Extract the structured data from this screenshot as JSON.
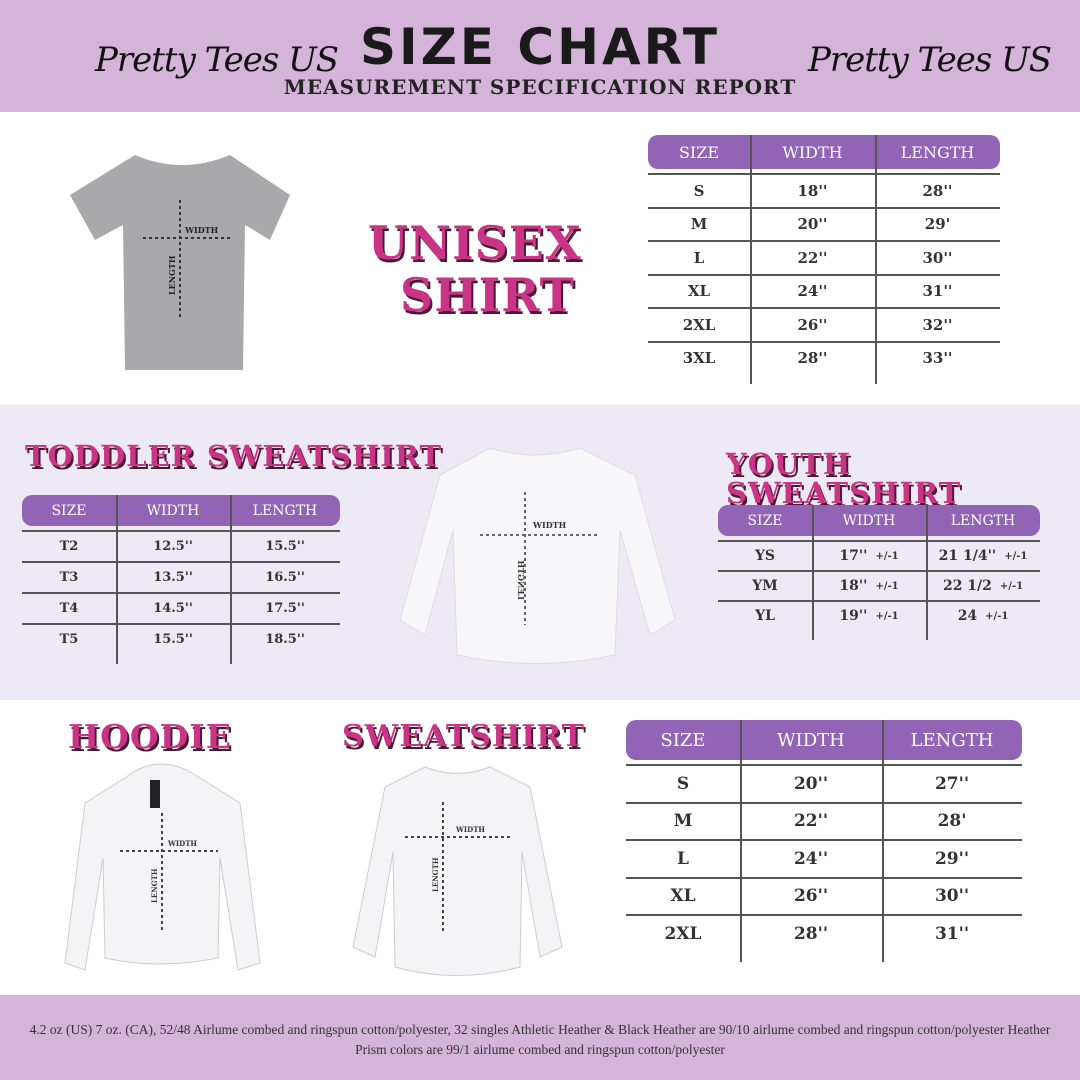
{
  "header": {
    "brand_left": "Pretty Tees US",
    "brand_right": "Pretty Tees US",
    "title": "SIZE CHART",
    "subtitle": "MEASUREMENT SPECIFICATION REPORT"
  },
  "colors": {
    "header_bg": "#d5b4d9",
    "table_header": "#9164b5",
    "title_pink": "#c93486",
    "mid_band": "#edeaf5"
  },
  "labels": {
    "width": "WIDTH",
    "length": "LENGTH"
  },
  "unisex": {
    "title_line1": "UNISEX",
    "title_line2": "SHIRT",
    "table": {
      "columns": [
        "SIZE",
        "WIDTH",
        "LENGTH"
      ],
      "rows": [
        [
          "S",
          "18''",
          "28''"
        ],
        [
          "M",
          "20''",
          "29'"
        ],
        [
          "L",
          "22''",
          "30''"
        ],
        [
          "XL",
          "24''",
          "31''"
        ],
        [
          "2XL",
          "26''",
          "32''"
        ],
        [
          "3XL",
          "28''",
          "33''"
        ]
      ]
    }
  },
  "toddler": {
    "title": "TODDLER SWEATSHIRT",
    "table": {
      "columns": [
        "SIZE",
        "WIDTH",
        "LENGTH"
      ],
      "rows": [
        [
          "T2",
          "12.5''",
          "15.5''"
        ],
        [
          "T3",
          "13.5''",
          "16.5''"
        ],
        [
          "T4",
          "14.5''",
          "17.5''"
        ],
        [
          "T5",
          "15.5''",
          "18.5''"
        ]
      ]
    }
  },
  "youth": {
    "title": "YOUTH SWEATSHIRT",
    "tolerance": "+/-1",
    "table": {
      "columns": [
        "SIZE",
        "WIDTH",
        "LENGTH"
      ],
      "rows": [
        [
          "YS",
          "17''",
          "21 1/4''"
        ],
        [
          "YM",
          "18''",
          "22 1/2"
        ],
        [
          "YL",
          "19''",
          "24"
        ]
      ]
    }
  },
  "hoodie": {
    "title": "HOODIE"
  },
  "sweatshirt": {
    "title": "SWEATSHIRT",
    "table": {
      "columns": [
        "SIZE",
        "WIDTH",
        "LENGTH"
      ],
      "rows": [
        [
          "S",
          "20''",
          "27''"
        ],
        [
          "M",
          "22''",
          "28'"
        ],
        [
          "L",
          "24''",
          "29''"
        ],
        [
          "XL",
          "26''",
          "30''"
        ],
        [
          "2XL",
          "28''",
          "31''"
        ]
      ]
    }
  },
  "footer": {
    "text": "4.2 oz (US) 7 oz. (CA), 52/48 Airlume combed and ringspun cotton/polyester, 32 singles Athletic Heather & Black Heather are 90/10 airlume combed and ringspun cotton/polyester Heather Prism colors are 99/1 airlume combed and ringspun cotton/polyester"
  }
}
